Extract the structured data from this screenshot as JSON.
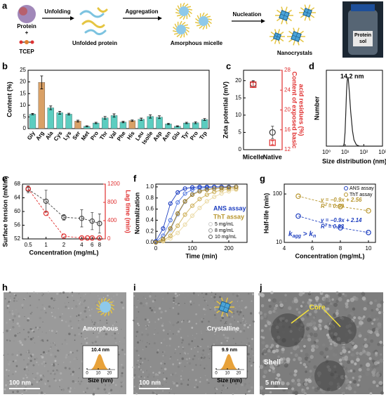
{
  "panel_labels": [
    "a",
    "b",
    "c",
    "d",
    "e",
    "f",
    "g",
    "h",
    "i",
    "j"
  ],
  "schematic": {
    "protein": "Protein",
    "plus": "+",
    "reagent": "TCEP",
    "step1": "Unfolding",
    "state1": "Unfolded protein",
    "step2": "Aggregation",
    "state2": "Amorphous micelle",
    "step3": "Nucleation",
    "state3": "Nanocrystals",
    "photo": [
      "Protein",
      "sol"
    ]
  },
  "chart_data": [
    {
      "type": "bar",
      "ylabel": "Content (%)",
      "categories": [
        "Gly",
        "Arg",
        "Ala",
        "Cys",
        "Lys",
        "Ser",
        "Met",
        "Pro",
        "Thr",
        "Val",
        "Phe",
        "His",
        "Leu",
        "Isoile",
        "Asp",
        "Asn",
        "Glu",
        "Tyr",
        "Pro",
        "Trp"
      ],
      "values": [
        6.2,
        19.8,
        8.9,
        6.8,
        6.2,
        3.2,
        1.0,
        2.4,
        4.6,
        5.6,
        2.8,
        3.4,
        4.0,
        5.2,
        4.9,
        2.0,
        1.0,
        2.4,
        2.5,
        3.9
      ],
      "errors": [
        0.3,
        2.8,
        0.8,
        0.6,
        0.4,
        0.4,
        0.2,
        0.3,
        0.6,
        0.7,
        0.3,
        0.3,
        0.5,
        0.7,
        0.6,
        0.3,
        0.2,
        0.3,
        0.4,
        0.4
      ],
      "colors": [
        "#5ccdc0",
        "#d9a066",
        "#5ccdc0",
        "#5ccdc0",
        "#5ccdc0",
        "#d9a066",
        "#5ccdc0",
        "#5ccdc0",
        "#5ccdc0",
        "#5ccdc0",
        "#5ccdc0",
        "#d9a066",
        "#5ccdc0",
        "#5ccdc0",
        "#5ccdc0",
        "#5ccdc0",
        "#5ccdc0",
        "#5ccdc0",
        "#5ccdc0",
        "#5ccdc0"
      ],
      "ylim": [
        0,
        25
      ],
      "yticks": [
        0,
        5,
        10,
        15,
        20,
        25
      ]
    },
    {
      "type": "scatter",
      "ylabel": "Zeta potential (mV)",
      "y2label": [
        "Content of exposed basic",
        "acid residues (%)"
      ],
      "categories": [
        "Micelle",
        "Native"
      ],
      "series": [
        {
          "color": "#333333",
          "marker": "circle",
          "values": [
            19.0,
            5.0
          ],
          "errors": [
            1.0,
            1.8
          ]
        },
        {
          "color": "#e03030",
          "marker": "square",
          "axis": "y2",
          "values": [
            25.1,
            13.4
          ],
          "errors": [
            0.4,
            0.4
          ]
        }
      ],
      "ylim": [
        0,
        23
      ],
      "yticks": [
        0,
        5,
        10,
        15,
        20
      ],
      "y2lim": [
        12,
        28
      ],
      "y2ticks": [
        12,
        16,
        20,
        24,
        28
      ],
      "y2color": "#e03030"
    },
    {
      "type": "line",
      "ylabel": "Number",
      "xlabel": "Size distribution (nm)",
      "annotation": "14.2  nm",
      "color": "#222222",
      "log_x": true,
      "xlim": [
        1,
        1000
      ],
      "xticks": [
        {
          "value": 1,
          "label": "10⁰"
        },
        {
          "value": 10,
          "label": "10¹"
        },
        {
          "value": 100,
          "label": "10²"
        },
        {
          "value": 1000,
          "label": "10³"
        }
      ],
      "x": [
        5,
        8,
        9,
        10,
        11,
        12,
        13,
        14.2,
        15,
        17,
        20,
        25,
        30,
        40,
        60,
        100,
        1000
      ],
      "values": [
        0,
        0,
        0.04,
        0.2,
        0.5,
        0.8,
        0.95,
        1,
        0.96,
        0.78,
        0.5,
        0.22,
        0.09,
        0.02,
        0,
        0,
        0
      ],
      "ylim": [
        0,
        1.1
      ]
    },
    {
      "type": "scatter",
      "ylabel": "Surface tension (mN/m)",
      "y2label": "Lag time (min)",
      "xlabel": "Concentration (mg/mL)",
      "log_x": true,
      "xlim": [
        0.4,
        10
      ],
      "xticks": [
        0.5,
        1,
        2,
        4,
        6,
        8
      ],
      "series": [
        {
          "color": "#444444",
          "marker": "circle",
          "line": "dashed",
          "x": [
            0.5,
            1,
            2,
            4,
            6,
            8
          ],
          "values": [
            66.5,
            63,
            58.3,
            58,
            57.2,
            56.5
          ],
          "errors": [
            1.0,
            3.2,
            0.8,
            2.5,
            2.5,
            2.8
          ]
        },
        {
          "color": "#e03030",
          "marker": "circle",
          "line": "dashed",
          "axis": "y2",
          "x": [
            0.5,
            1,
            2,
            4,
            5,
            6,
            8
          ],
          "values": [
            1100,
            560,
            60,
            20,
            20,
            20,
            20
          ]
        }
      ],
      "ylim": [
        52,
        68
      ],
      "yticks": [
        52,
        56,
        60,
        64,
        68
      ],
      "y2lim": [
        0,
        1200
      ],
      "y2ticks": [
        0,
        400,
        800,
        1200
      ],
      "y2color": "#e03030"
    },
    {
      "type": "scatter",
      "ylabel": "Normalization",
      "xlabel": "Time (min)",
      "legend_groups": [
        {
          "text": "ANS assay",
          "color": "#1e3fc0"
        },
        {
          "text": "ThT assay",
          "color": "#b8962e"
        }
      ],
      "legend_entries": [
        "5 mg/mL",
        "8 mg/mL",
        "10 mg/mL"
      ],
      "xlim": [
        0,
        250
      ],
      "xticks": [
        0,
        100,
        200
      ],
      "ylim": [
        0,
        1.05
      ],
      "yticks": [
        {
          "value": 0,
          "label": "0.0"
        },
        0.2,
        0.4,
        0.6,
        0.8,
        {
          "value": 1,
          "label": "1.0"
        }
      ],
      "x": [
        0,
        20,
        40,
        60,
        80,
        100,
        120,
        140,
        160,
        180,
        200,
        220
      ],
      "series": [
        {
          "color": "#a9bdf0",
          "marker": "circle",
          "line": "solid",
          "values": [
            0.01,
            0.06,
            0.22,
            0.5,
            0.73,
            0.87,
            0.94,
            0.97,
            0.99,
            1,
            1,
            1
          ]
        },
        {
          "color": "#5b7fe0",
          "marker": "circle",
          "line": "solid",
          "values": [
            0.01,
            0.12,
            0.4,
            0.72,
            0.88,
            0.95,
            0.98,
            0.99,
            1,
            1,
            1,
            1
          ]
        },
        {
          "color": "#1e3fc0",
          "marker": "circle",
          "line": "solid",
          "values": [
            0.02,
            0.25,
            0.7,
            0.9,
            0.97,
            0.99,
            1,
            1,
            1,
            1,
            1,
            1
          ]
        },
        {
          "color": "#ecdcaa",
          "marker": "circle",
          "line": "solid",
          "values": [
            0,
            0.02,
            0.07,
            0.17,
            0.32,
            0.48,
            0.62,
            0.74,
            0.82,
            0.88,
            0.92,
            0.95
          ]
        },
        {
          "color": "#cfb25e",
          "marker": "circle",
          "line": "solid",
          "values": [
            0,
            0.03,
            0.12,
            0.3,
            0.5,
            0.66,
            0.78,
            0.86,
            0.91,
            0.94,
            0.96,
            0.97
          ]
        },
        {
          "color": "#9a7a22",
          "marker": "circle",
          "line": "solid",
          "values": [
            0,
            0.06,
            0.25,
            0.52,
            0.74,
            0.86,
            0.92,
            0.95,
            0.97,
            0.98,
            0.99,
            1
          ]
        }
      ]
    },
    {
      "type": "scatter",
      "ylabel": "Half-life (min)",
      "xlabel": "Concentration (mg/mL)",
      "legend": "top-right",
      "log_y": true,
      "xlim": [
        4,
        10.5
      ],
      "xticks": [
        4,
        6,
        8,
        10
      ],
      "ylim": [
        10,
        160
      ],
      "yticks": [
        10,
        100
      ],
      "annotations": [
        "y = −0.9x + 2.56",
        "R² = 0.99",
        "y = −0.9x + 2.14",
        "R² = 0.93"
      ],
      "k_label": [
        "k",
        "agg",
        " > k",
        "n"
      ],
      "series": [
        {
          "name": "ANS assay",
          "color": "#1e3fc0",
          "marker": "circle",
          "line": "dashed",
          "x": [
            5,
            8,
            10
          ],
          "values": [
            35,
            20,
            16
          ]
        },
        {
          "name": "ThT assay",
          "color": "#b8962e",
          "marker": "circle",
          "line": "dashed",
          "x": [
            5,
            8,
            10
          ],
          "values": [
            90,
            55,
            45
          ]
        }
      ]
    }
  ],
  "micrographs": [
    {
      "label": "Amorphous",
      "peak": "10.4 nm",
      "xlabel": "Size (nm)",
      "xticks": [
        0,
        10,
        20
      ],
      "scale": "100 nm"
    },
    {
      "label": "Crystalline",
      "peak": "9.9 nm",
      "xlabel": "Size (nm)",
      "xticks": [
        0,
        10,
        20
      ],
      "scale": "100 nm"
    },
    {
      "core": "Core",
      "shell": "Shell",
      "scale": "5 nm"
    }
  ]
}
